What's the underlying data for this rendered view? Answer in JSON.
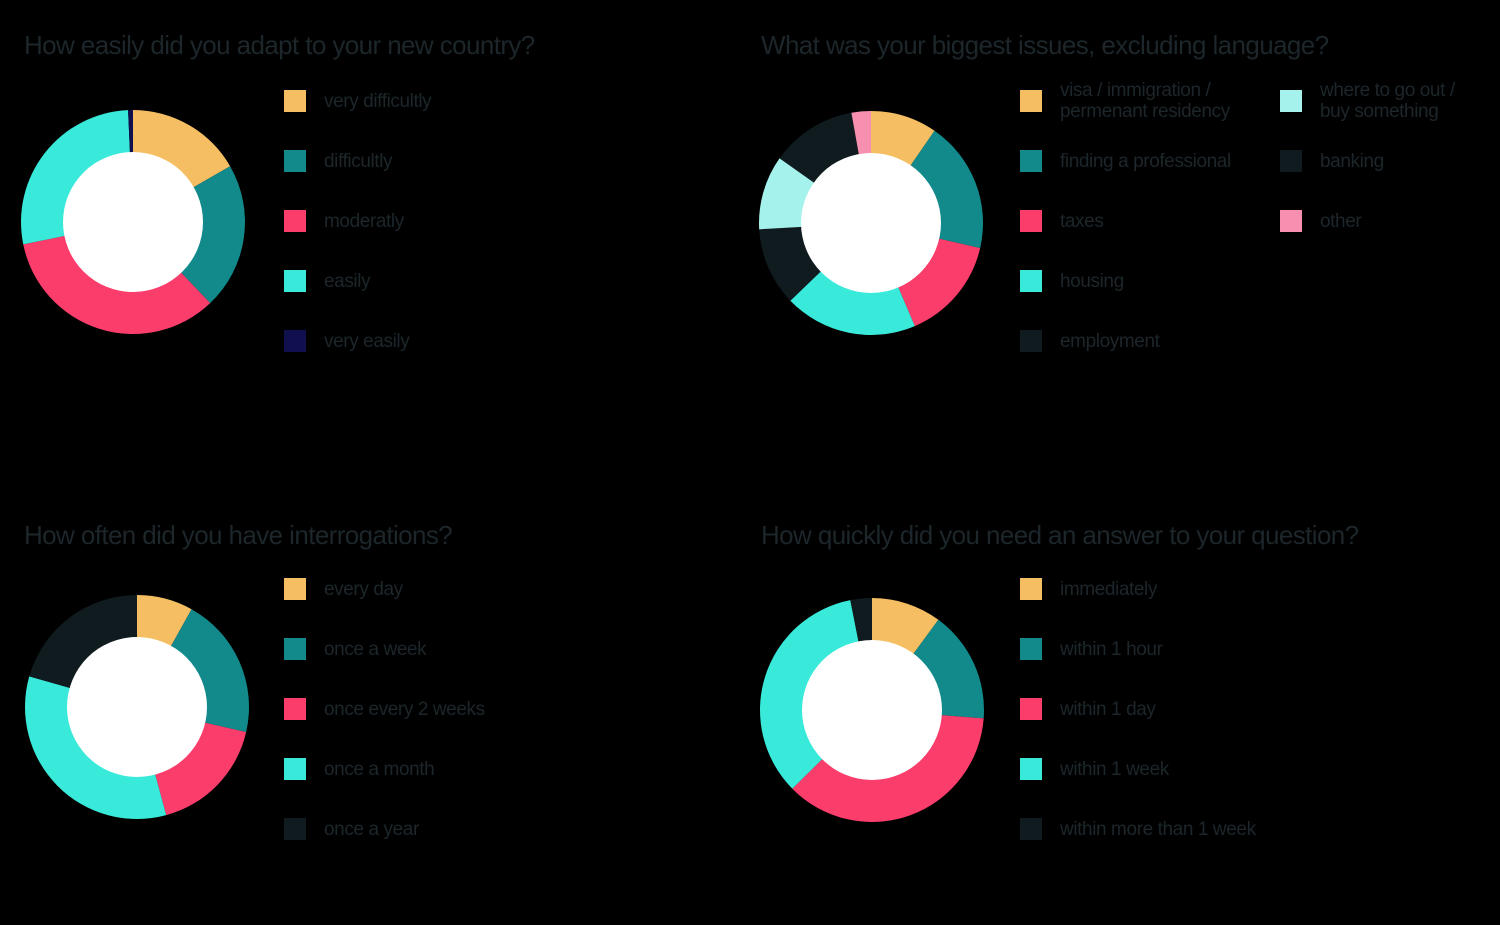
{
  "page": {
    "background_color": "#000000",
    "text_color": "#1C262B",
    "hole_color": "#FFFFFF"
  },
  "chart_data": [
    {
      "type": "pie",
      "subtype": "donut",
      "title": "How easily did you adapt to your new country?",
      "unit": "percent",
      "start_angle_deg": 0,
      "direction": "clockwise",
      "legend_position": "right",
      "slices": [
        {
          "label": "very difficultly",
          "value": 16.7,
          "color": "#F5BE63"
        },
        {
          "label": "difficultly",
          "value": 21.2,
          "color": "#12898B"
        },
        {
          "label": "moderatly",
          "value": 33.9,
          "color": "#FB3D6C"
        },
        {
          "label": "easily",
          "value": 27.5,
          "color": "#39E9DA"
        },
        {
          "label": "very easily",
          "value": 0.7,
          "color": "#10104E"
        }
      ]
    },
    {
      "type": "pie",
      "subtype": "donut",
      "title": "What was your biggest issues, excluding language?",
      "unit": "percent",
      "start_angle_deg": 0,
      "direction": "clockwise",
      "legend_position": "right",
      "slices": [
        {
          "label": "visa / immigration /\npermenant residency",
          "value": 9.6,
          "color": "#F5BE63",
          "legend_column": 1
        },
        {
          "label": "finding a professional",
          "value": 19.0,
          "color": "#12898B",
          "legend_column": 1
        },
        {
          "label": "taxes",
          "value": 15.0,
          "color": "#FB3D6C",
          "legend_column": 1
        },
        {
          "label": "housing",
          "value": 19.2,
          "color": "#39E9DA",
          "legend_column": 1
        },
        {
          "label": "employment",
          "value": 11.3,
          "color": "#0F1B1F",
          "legend_column": 1
        },
        {
          "label": "where to go out /\nbuy something",
          "value": 10.7,
          "color": "#A5F1EB",
          "legend_column": 2
        },
        {
          "label": "banking",
          "value": 12.4,
          "color": "#0F1B1F",
          "legend_column": 2
        },
        {
          "label": "other",
          "value": 2.8,
          "color": "#F78FB1",
          "legend_column": 2
        }
      ]
    },
    {
      "type": "pie",
      "subtype": "donut",
      "title": "How often did you have interrogations?",
      "unit": "percent",
      "start_angle_deg": 0,
      "direction": "clockwise",
      "legend_position": "right",
      "slices": [
        {
          "label": "every day",
          "value": 8.1,
          "color": "#F5BE63"
        },
        {
          "label": "once a week",
          "value": 20.5,
          "color": "#12898B"
        },
        {
          "label": "once every 2 weeks",
          "value": 17.2,
          "color": "#FB3D6C"
        },
        {
          "label": "once a month",
          "value": 33.6,
          "color": "#39E9DA"
        },
        {
          "label": "once a year",
          "value": 20.6,
          "color": "#0F1B1F"
        }
      ]
    },
    {
      "type": "pie",
      "subtype": "donut",
      "title": "How quickly did you need an answer to your question?",
      "unit": "percent",
      "start_angle_deg": 0,
      "direction": "clockwise",
      "legend_position": "right",
      "slices": [
        {
          "label": "immediately",
          "value": 10.1,
          "color": "#F5BE63"
        },
        {
          "label": "within 1 hour",
          "value": 16.1,
          "color": "#12898B"
        },
        {
          "label": "within 1 day",
          "value": 36.4,
          "color": "#FB3D6C"
        },
        {
          "label": "within 1 week",
          "value": 34.3,
          "color": "#39E9DA"
        },
        {
          "label": "within more than 1 week",
          "value": 3.1,
          "color": "#0F1B1F"
        }
      ]
    }
  ]
}
